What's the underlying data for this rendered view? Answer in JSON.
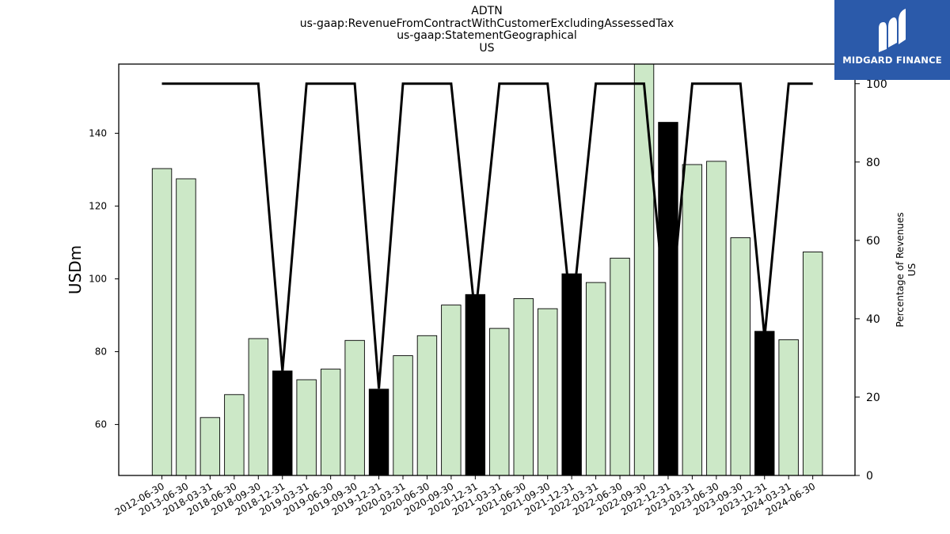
{
  "chart_data": {
    "type": "bar",
    "title_lines": [
      "ADTN",
      "us-gaap:RevenueFromContractWithCustomerExcludingAssessedTax",
      "us-gaap:StatementGeographical",
      "US"
    ],
    "ylabel": "USDm",
    "ylabel_right_lines": [
      "Percentage of Revenues",
      "US"
    ],
    "ylim": [
      46,
      159
    ],
    "ylim_right": [
      0,
      105
    ],
    "yticks": [
      60,
      80,
      100,
      120,
      140
    ],
    "yticks_right": [
      0,
      20,
      40,
      60,
      80,
      100
    ],
    "categories": [
      "2012-06-30",
      "2013-06-30",
      "2018-03-31",
      "2018-06-30",
      "2018-09-30",
      "2018-12-31",
      "2019-03-31",
      "2019-06-30",
      "2019-09-30",
      "2019-12-31",
      "2020-03-31",
      "2020-06-30",
      "2020-09-30",
      "2020-12-31",
      "2021-03-31",
      "2021-06-30",
      "2021-09-30",
      "2021-12-31",
      "2022-03-31",
      "2022-06-30",
      "2022-09-30",
      "2022-12-31",
      "2023-03-31",
      "2023-06-30",
      "2023-09-30",
      "2023-12-31",
      "2024-03-31",
      "2024-06-30"
    ],
    "series": [
      {
        "values": [
          130.3,
          127.5,
          61.9,
          68.2,
          83.6,
          74.7,
          72.3,
          75.2,
          83.1,
          69.7,
          78.9,
          84.4,
          92.8,
          95.7,
          86.4,
          94.6,
          91.8,
          101.4,
          99.0,
          105.7,
          159.5,
          143.0,
          131.4,
          132.3,
          111.3,
          85.6,
          83.3,
          107.4
        ],
        "highlight": [
          false,
          false,
          false,
          false,
          false,
          true,
          false,
          false,
          false,
          true,
          false,
          false,
          false,
          true,
          false,
          false,
          false,
          true,
          false,
          false,
          false,
          true,
          false,
          false,
          false,
          true,
          false,
          false
        ]
      },
      {
        "axis": "right",
        "type": "line",
        "values": [
          100,
          100,
          100,
          100,
          100,
          26.6,
          100,
          100,
          100,
          22.2,
          100,
          100,
          100,
          40.5,
          100,
          100,
          100,
          40.0,
          100,
          100,
          100,
          34.6,
          100,
          100,
          100,
          35.2,
          100,
          100
        ]
      }
    ],
    "colors": {
      "bar": "#cce8c7",
      "bar_highlight": "#000000",
      "line": "#000000"
    }
  },
  "logo": {
    "text": "MIDGARD FINANCE",
    "color": "#2b5aaa"
  }
}
